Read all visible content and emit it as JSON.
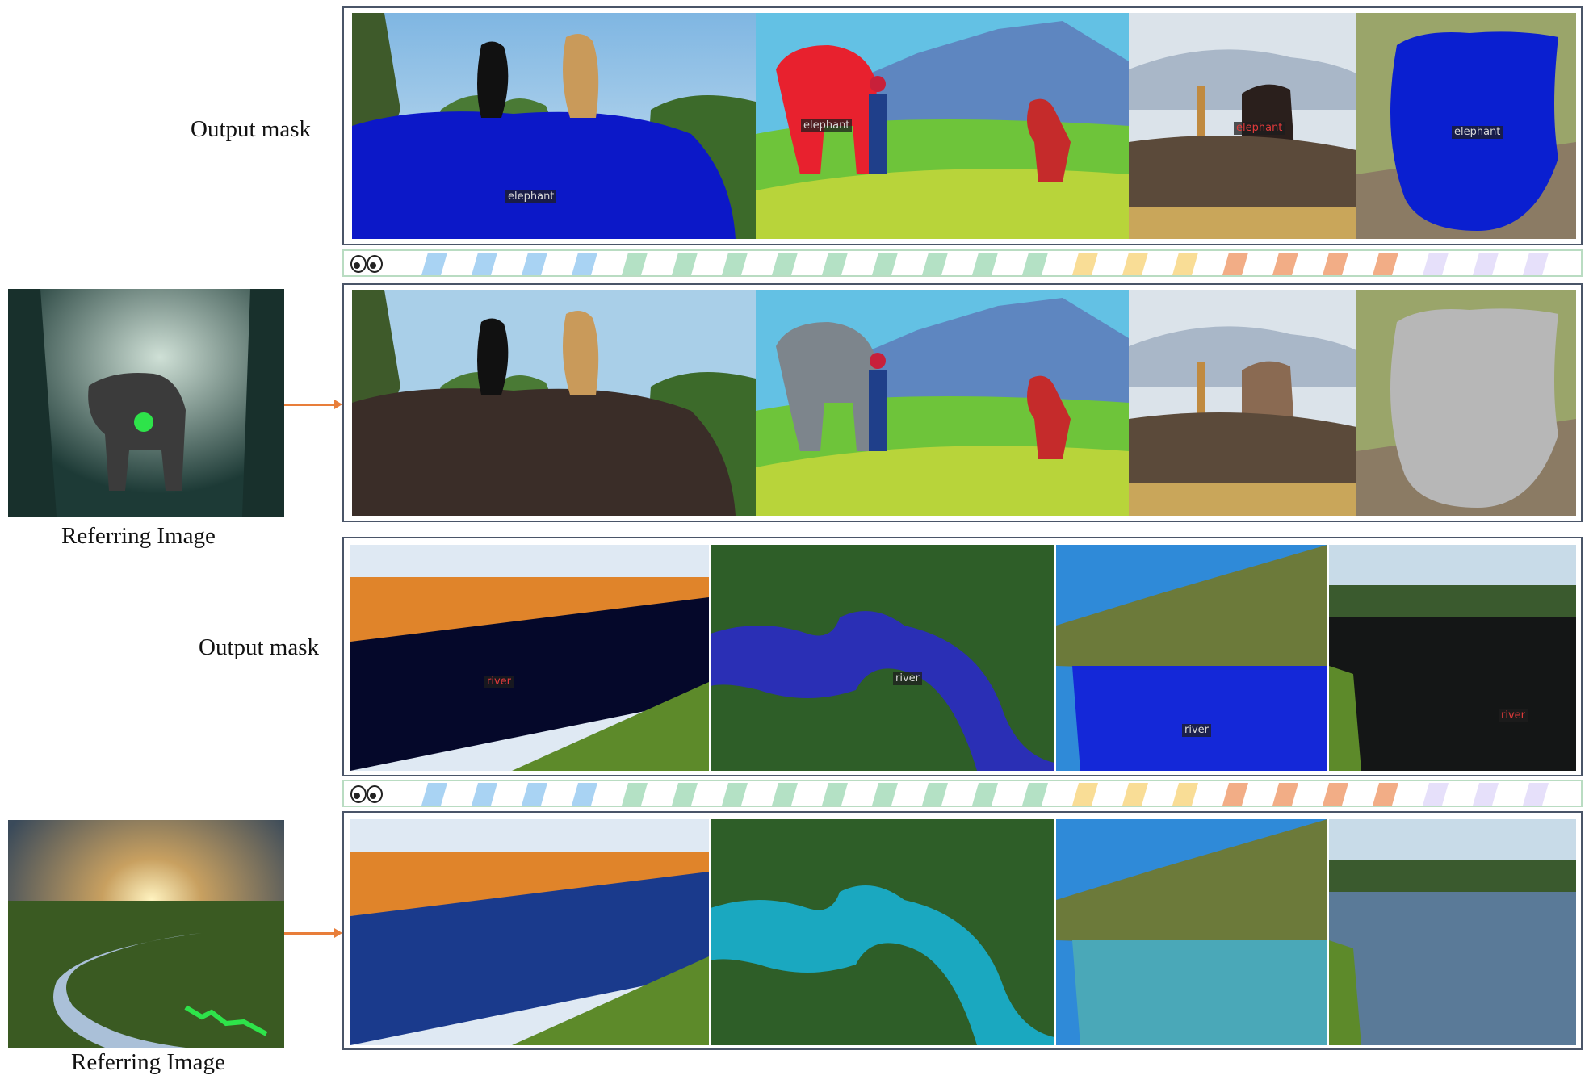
{
  "group1": {
    "output_label": "Output mask",
    "referring_label": "Referring Image",
    "mask_tags": [
      "elephant",
      "elephant",
      "elephant",
      "elephant"
    ]
  },
  "group2": {
    "output_label": "Output mask",
    "referring_label": "Referring Image",
    "mask_tags": [
      "river",
      "river",
      "river",
      "river"
    ]
  },
  "colors": {
    "panel_border": "#4a5568",
    "arrow": "#e87e3a",
    "mask_blue": "#0a1fd0",
    "mask_red": "#e31d2a",
    "prompt_point": "#2ee34a",
    "strip_border": "#b9dcc2",
    "strip_palette": [
      "#a9d3f3",
      "#b4e1c5",
      "#f9dd96",
      "#f2ad86",
      "#e6e0fa"
    ]
  }
}
